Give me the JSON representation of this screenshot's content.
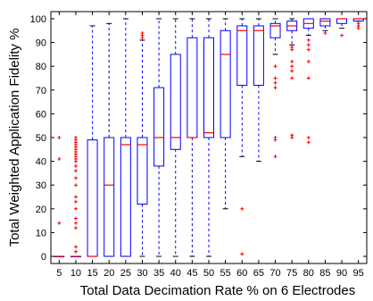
{
  "chart_data": {
    "type": "box",
    "title": "",
    "xlabel": "Total Data Decimation Rate % on 6 Electrodes",
    "ylabel": "Total Weighted Application Fidelity %",
    "ylim": [
      -3,
      103
    ],
    "yticks": [
      0,
      10,
      20,
      30,
      40,
      50,
      60,
      70,
      80,
      90,
      100
    ],
    "grid": false,
    "legend": "none",
    "colors": {
      "box": "#0000ff",
      "median": "#ff0000",
      "whisker": "#0000ff",
      "outlier": "#ff0000",
      "axis": "#000000"
    },
    "categories": [
      "5",
      "10",
      "15",
      "20",
      "25",
      "30",
      "35",
      "40",
      "45",
      "50",
      "55",
      "60",
      "65",
      "70",
      "75",
      "80",
      "85",
      "90",
      "95"
    ],
    "boxes": [
      {
        "x": "5",
        "whisker_low": 0,
        "q1": 0,
        "median": 0,
        "q3": 0,
        "whisker_high": 0,
        "outliers": [
          50,
          41,
          14
        ]
      },
      {
        "x": "10",
        "whisker_low": 0,
        "q1": 0,
        "median": 0,
        "q3": 0,
        "whisker_high": 0,
        "outliers": [
          50,
          49,
          48,
          47,
          46,
          45,
          44,
          43,
          42,
          41,
          40,
          38,
          36,
          33,
          30,
          25,
          23,
          20,
          16,
          14,
          12,
          4,
          2
        ]
      },
      {
        "x": "15",
        "whisker_low": 0,
        "q1": 0,
        "median": 0,
        "q3": 49,
        "whisker_high": 97,
        "outliers": []
      },
      {
        "x": "20",
        "whisker_low": 0,
        "q1": 0,
        "median": 30,
        "q3": 50,
        "whisker_high": 98,
        "outliers": []
      },
      {
        "x": "25",
        "whisker_low": 0,
        "q1": 0,
        "median": 47,
        "q3": 50,
        "whisker_high": 100,
        "outliers": []
      },
      {
        "x": "30",
        "whisker_low": 0,
        "q1": 22,
        "median": 47,
        "q3": 50,
        "whisker_high": 91,
        "outliers": [
          93,
          92,
          94
        ]
      },
      {
        "x": "35",
        "whisker_low": 0,
        "q1": 38,
        "median": 50,
        "q3": 71,
        "whisker_high": 100,
        "outliers": []
      },
      {
        "x": "40",
        "whisker_low": 0,
        "q1": 45,
        "median": 50,
        "q3": 85,
        "whisker_high": 100,
        "outliers": []
      },
      {
        "x": "45",
        "whisker_low": 0,
        "q1": 50,
        "median": 50,
        "q3": 92,
        "whisker_high": 100,
        "outliers": []
      },
      {
        "x": "50",
        "whisker_low": 0,
        "q1": 50,
        "median": 52,
        "q3": 92,
        "whisker_high": 100,
        "outliers": []
      },
      {
        "x": "55",
        "whisker_low": 20,
        "q1": 50,
        "median": 85,
        "q3": 95,
        "whisker_high": 100,
        "outliers": []
      },
      {
        "x": "60",
        "whisker_low": 42,
        "q1": 72,
        "median": 95,
        "q3": 97,
        "whisker_high": 100,
        "outliers": [
          20,
          1
        ]
      },
      {
        "x": "65",
        "whisker_low": 40,
        "q1": 72,
        "median": 95,
        "q3": 97,
        "whisker_high": 100,
        "outliers": []
      },
      {
        "x": "70",
        "whisker_low": 85,
        "q1": 92,
        "median": 97,
        "q3": 98,
        "whisker_high": 100,
        "outliers": [
          80,
          75,
          73,
          71,
          50,
          49,
          42
        ]
      },
      {
        "x": "75",
        "whisker_low": 89,
        "q1": 95,
        "median": 97,
        "q3": 99,
        "whisker_high": 100,
        "outliers": [
          88,
          87,
          82,
          80,
          78,
          75,
          51,
          50
        ]
      },
      {
        "x": "80",
        "whisker_low": 93,
        "q1": 96,
        "median": 98,
        "q3": 100,
        "whisker_high": 100,
        "outliers": [
          91,
          89,
          87,
          82,
          75,
          50,
          48
        ]
      },
      {
        "x": "85",
        "whisker_low": 95,
        "q1": 97,
        "median": 99,
        "q3": 100,
        "whisker_high": 100,
        "outliers": [
          94
        ]
      },
      {
        "x": "90",
        "whisker_low": 96,
        "q1": 98,
        "median": 100,
        "q3": 100,
        "whisker_high": 100,
        "outliers": [
          93
        ]
      },
      {
        "x": "95",
        "whisker_low": 99,
        "q1": 99,
        "median": 100,
        "q3": 100,
        "whisker_high": 100,
        "outliers": [
          98,
          97,
          96
        ]
      }
    ]
  }
}
